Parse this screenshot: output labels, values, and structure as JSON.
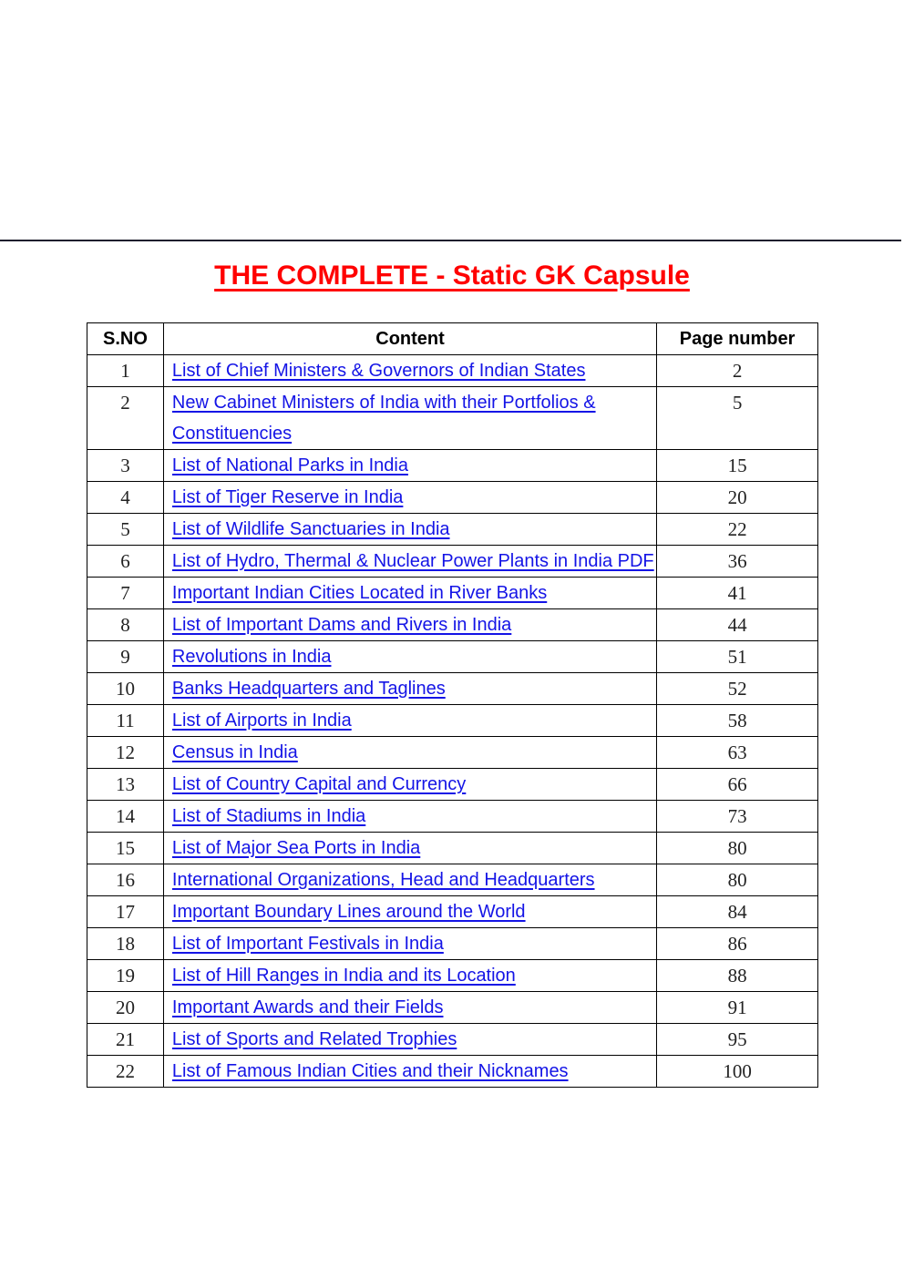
{
  "title": "THE COMPLETE - Static GK Capsule",
  "colors": {
    "title": "#ff0000",
    "link": "#1414e6"
  },
  "table": {
    "headers": [
      "S.NO",
      "Content",
      "Page number"
    ],
    "rows": [
      {
        "sno": "1",
        "content": "List of Chief Ministers & Governors of Indian States",
        "page": "2"
      },
      {
        "sno": "2",
        "content": "New Cabinet Ministers of India with their Portfolios & Constituencies",
        "page": "5"
      },
      {
        "sno": "3",
        "content": "List of National Parks in India",
        "page": "15"
      },
      {
        "sno": "4",
        "content": "List of Tiger Reserve in India",
        "page": "20"
      },
      {
        "sno": "5",
        "content": "List of Wildlife Sanctuaries in India",
        "page": "22"
      },
      {
        "sno": "6",
        "content": "List of Hydro, Thermal & Nuclear Power Plants in India PDF",
        "page": "36"
      },
      {
        "sno": "7",
        "content": "Important Indian Cities Located in River Banks",
        "page": "41"
      },
      {
        "sno": "8",
        "content": "List of Important Dams and Rivers in India",
        "page": "44"
      },
      {
        "sno": "9",
        "content": "Revolutions in India",
        "page": "51"
      },
      {
        "sno": "10",
        "content": "Banks Headquarters and Taglines",
        "page": "52"
      },
      {
        "sno": "11",
        "content": "List of Airports in India",
        "page": "58"
      },
      {
        "sno": "12",
        "content": "Census in India",
        "page": "63"
      },
      {
        "sno": "13",
        "content": "List of Country Capital and Currency",
        "page": "66"
      },
      {
        "sno": "14",
        "content": "List of Stadiums in India",
        "page": "73"
      },
      {
        "sno": "15",
        "content": "List of Major Sea Ports in India",
        "page": "80"
      },
      {
        "sno": "16",
        "content": "International Organizations, Head and Headquarters",
        "page": "80"
      },
      {
        "sno": "17",
        "content": "Important Boundary Lines around the World",
        "page": "84"
      },
      {
        "sno": "18",
        "content": "List of Important Festivals in India",
        "page": "86"
      },
      {
        "sno": "19",
        "content": "List of Hill Ranges in India and its Location",
        "page": "88"
      },
      {
        "sno": "20",
        "content": "Important Awards and their Fields",
        "page": "91"
      },
      {
        "sno": "21",
        "content": "List of Sports and Related Trophies",
        "page": "95"
      },
      {
        "sno": "22",
        "content": "List of Famous Indian Cities and their Nicknames",
        "page": "100"
      }
    ]
  }
}
